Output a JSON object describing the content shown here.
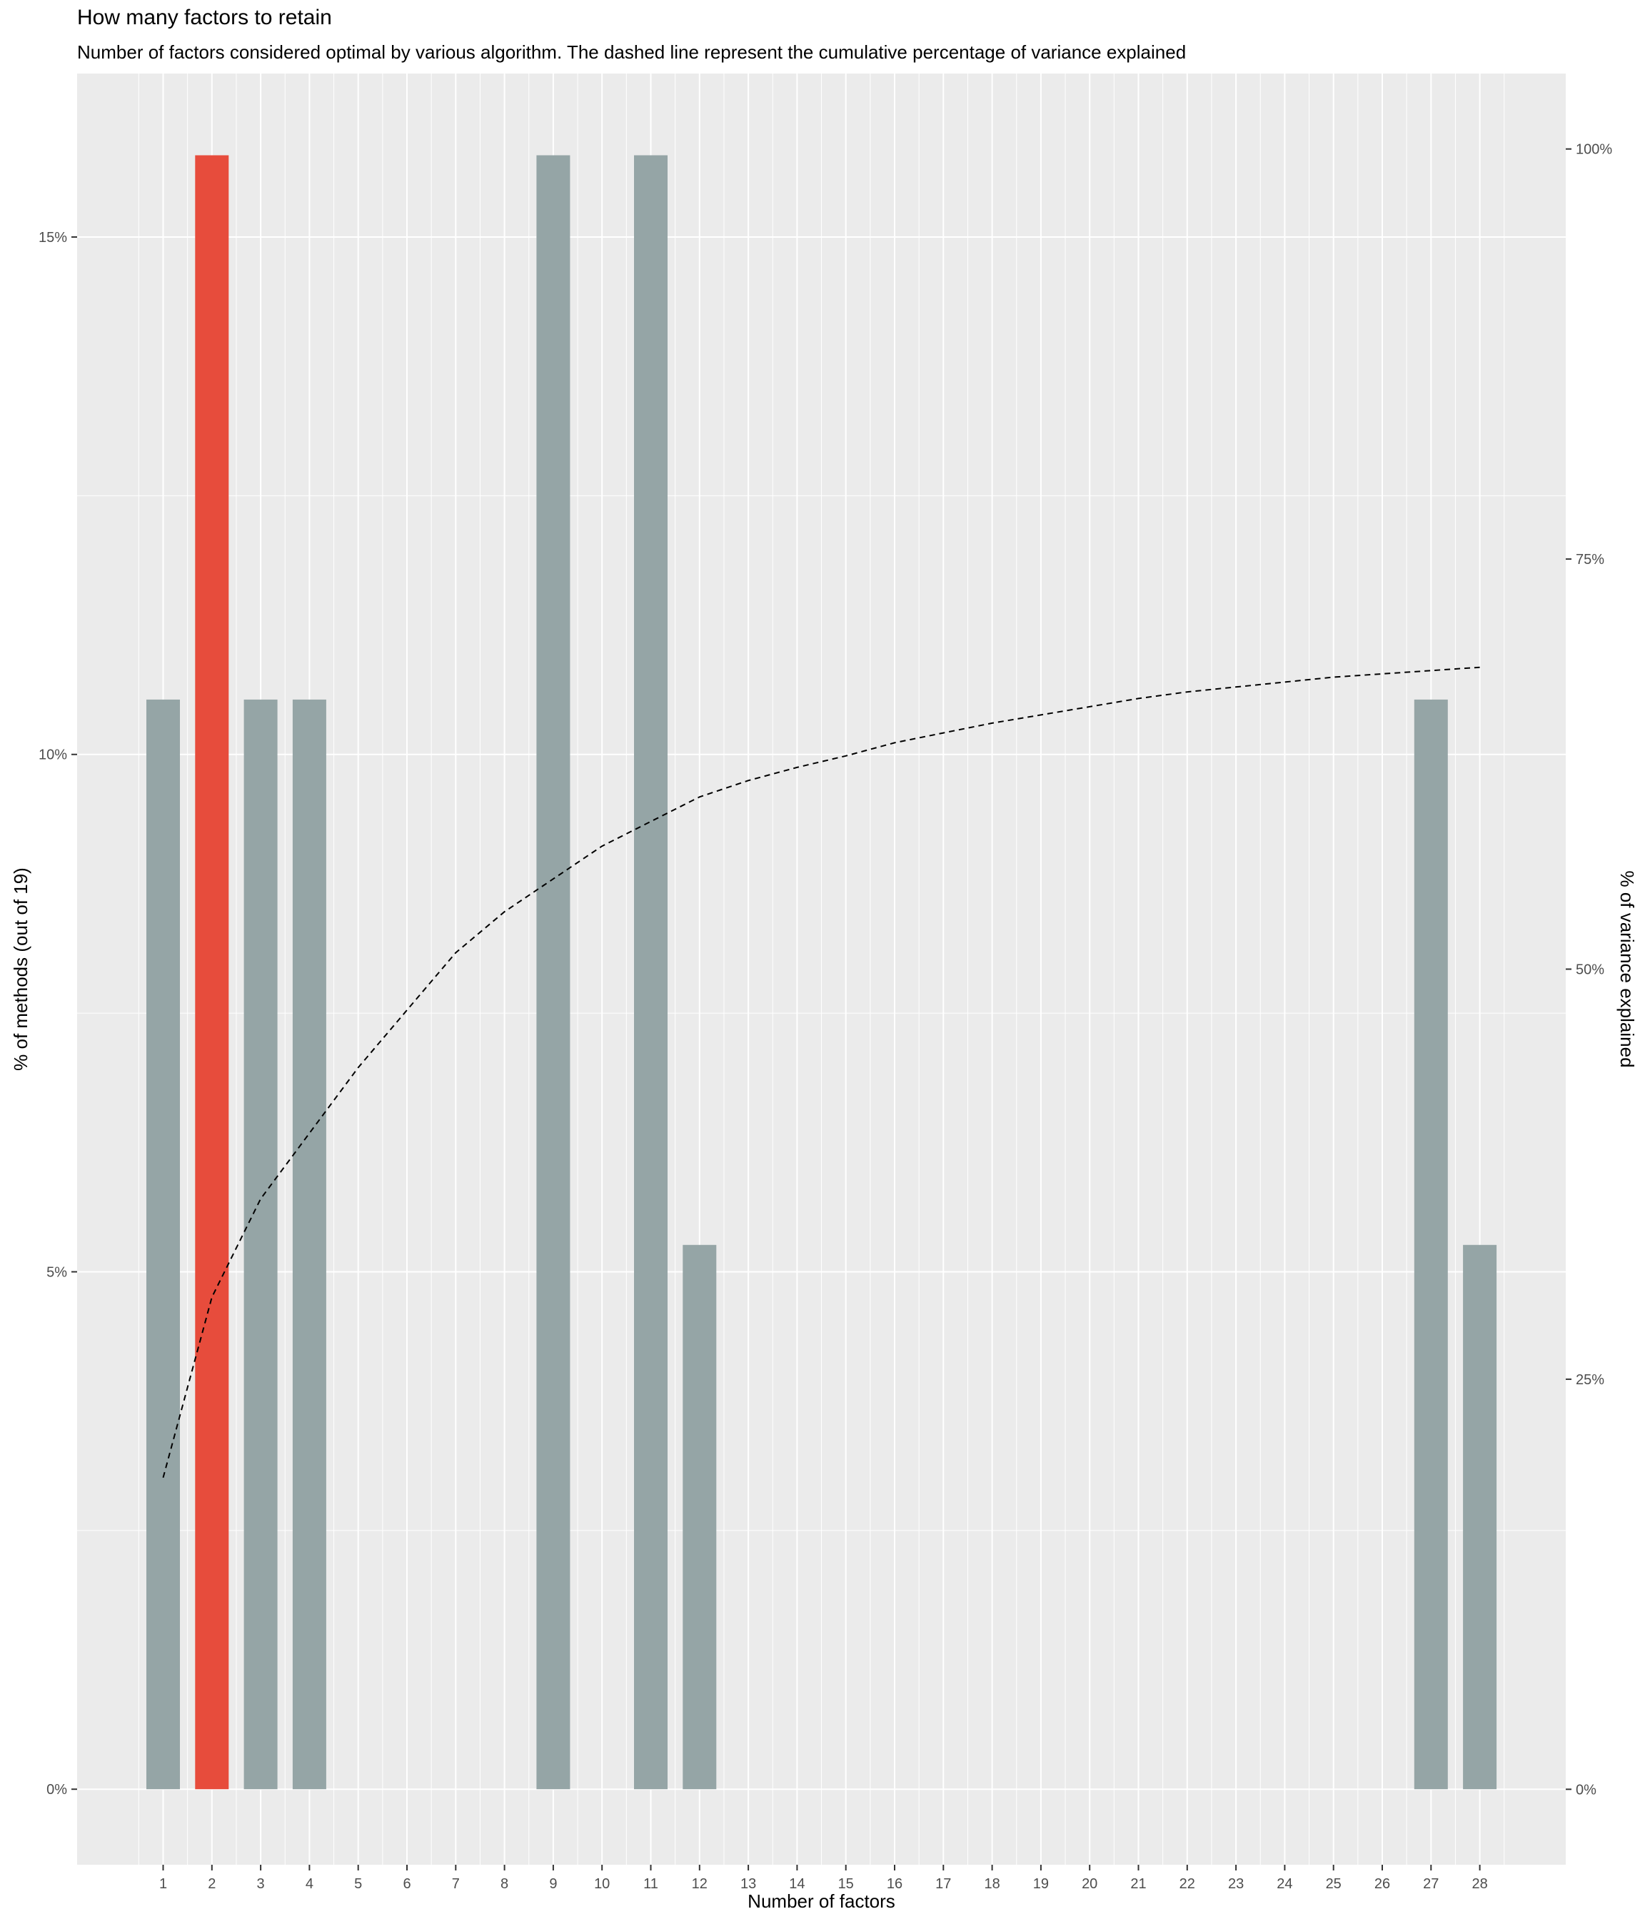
{
  "chart_data": {
    "type": "bar",
    "title": "How many factors to retain",
    "subtitle": "Number of factors considered optimal by various algorithm. The dashed line represent the cumulative percentage of variance explained",
    "xlabel": "Number of factors",
    "ylabel": "% of methods (out of 19)",
    "y2label": "% of variance explained",
    "categories": [
      "1",
      "2",
      "3",
      "4",
      "5",
      "6",
      "7",
      "8",
      "9",
      "10",
      "11",
      "12",
      "13",
      "14",
      "15",
      "16",
      "17",
      "18",
      "19",
      "20",
      "21",
      "22",
      "23",
      "24",
      "25",
      "26",
      "27",
      "28"
    ],
    "values": [
      10.53,
      15.79,
      10.53,
      10.53,
      0,
      0,
      0,
      0,
      15.79,
      0,
      15.79,
      5.26,
      0,
      0,
      0,
      0,
      0,
      0,
      0,
      0,
      0,
      0,
      0,
      0,
      0,
      0,
      10.53,
      5.26
    ],
    "highlight_index": 1,
    "ylim": [
      -0.73,
      16.58
    ],
    "yticks": [
      0,
      5,
      10,
      15
    ],
    "ytick_labels": [
      "0%",
      "5%",
      "10%",
      "15%"
    ],
    "y2lim": [
      -4.6,
      104.6
    ],
    "y2ticks": [
      0,
      25,
      50,
      75,
      100
    ],
    "y2tick_labels": [
      "0%",
      "25%",
      "50%",
      "75%",
      "100%"
    ],
    "cumulative_variance": {
      "style": "dashed",
      "x": [
        1,
        2,
        3,
        4,
        5,
        6,
        7,
        8,
        9,
        10,
        11,
        12,
        13,
        14,
        15,
        16,
        17,
        18,
        19,
        20,
        21,
        22,
        23,
        24,
        25,
        26,
        27,
        28
      ],
      "values": [
        19,
        30,
        36,
        40,
        44,
        47.5,
        51,
        53.5,
        55.5,
        57.5,
        59,
        60.5,
        61.5,
        62.3,
        63,
        63.8,
        64.4,
        65,
        65.5,
        66,
        66.5,
        66.9,
        67.2,
        67.5,
        67.8,
        68,
        68.2,
        68.4
      ]
    },
    "grid": true,
    "colors": {
      "bar": "#95a5a6",
      "highlight": "#e74c3c",
      "panel": "#ebebeb",
      "grid": "#ffffff",
      "line": "#000000"
    }
  }
}
